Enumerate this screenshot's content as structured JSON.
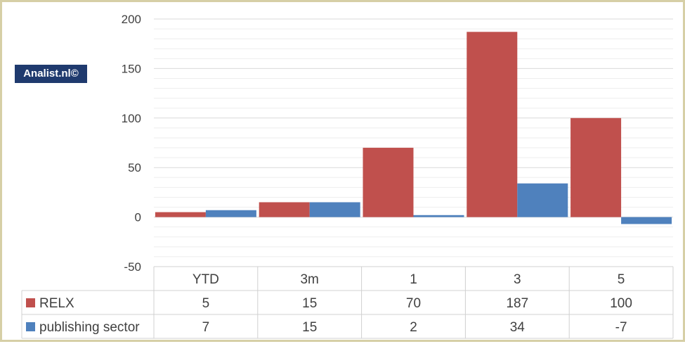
{
  "watermark": "Analist.nl©",
  "chart_data": {
    "type": "bar",
    "categories": [
      "YTD",
      "3m",
      "1",
      "3",
      "5"
    ],
    "series": [
      {
        "name": "RELX",
        "values": [
          5,
          15,
          70,
          187,
          100
        ],
        "color": "#c0504d"
      },
      {
        "name": "publishing sector",
        "values": [
          7,
          15,
          2,
          34,
          -7
        ],
        "color": "#4f81bd"
      }
    ],
    "ylim": [
      -50,
      200
    ],
    "yticks": [
      -50,
      0,
      50,
      100,
      150,
      200
    ],
    "grid": true,
    "legend": "data-table",
    "data_table": true
  }
}
